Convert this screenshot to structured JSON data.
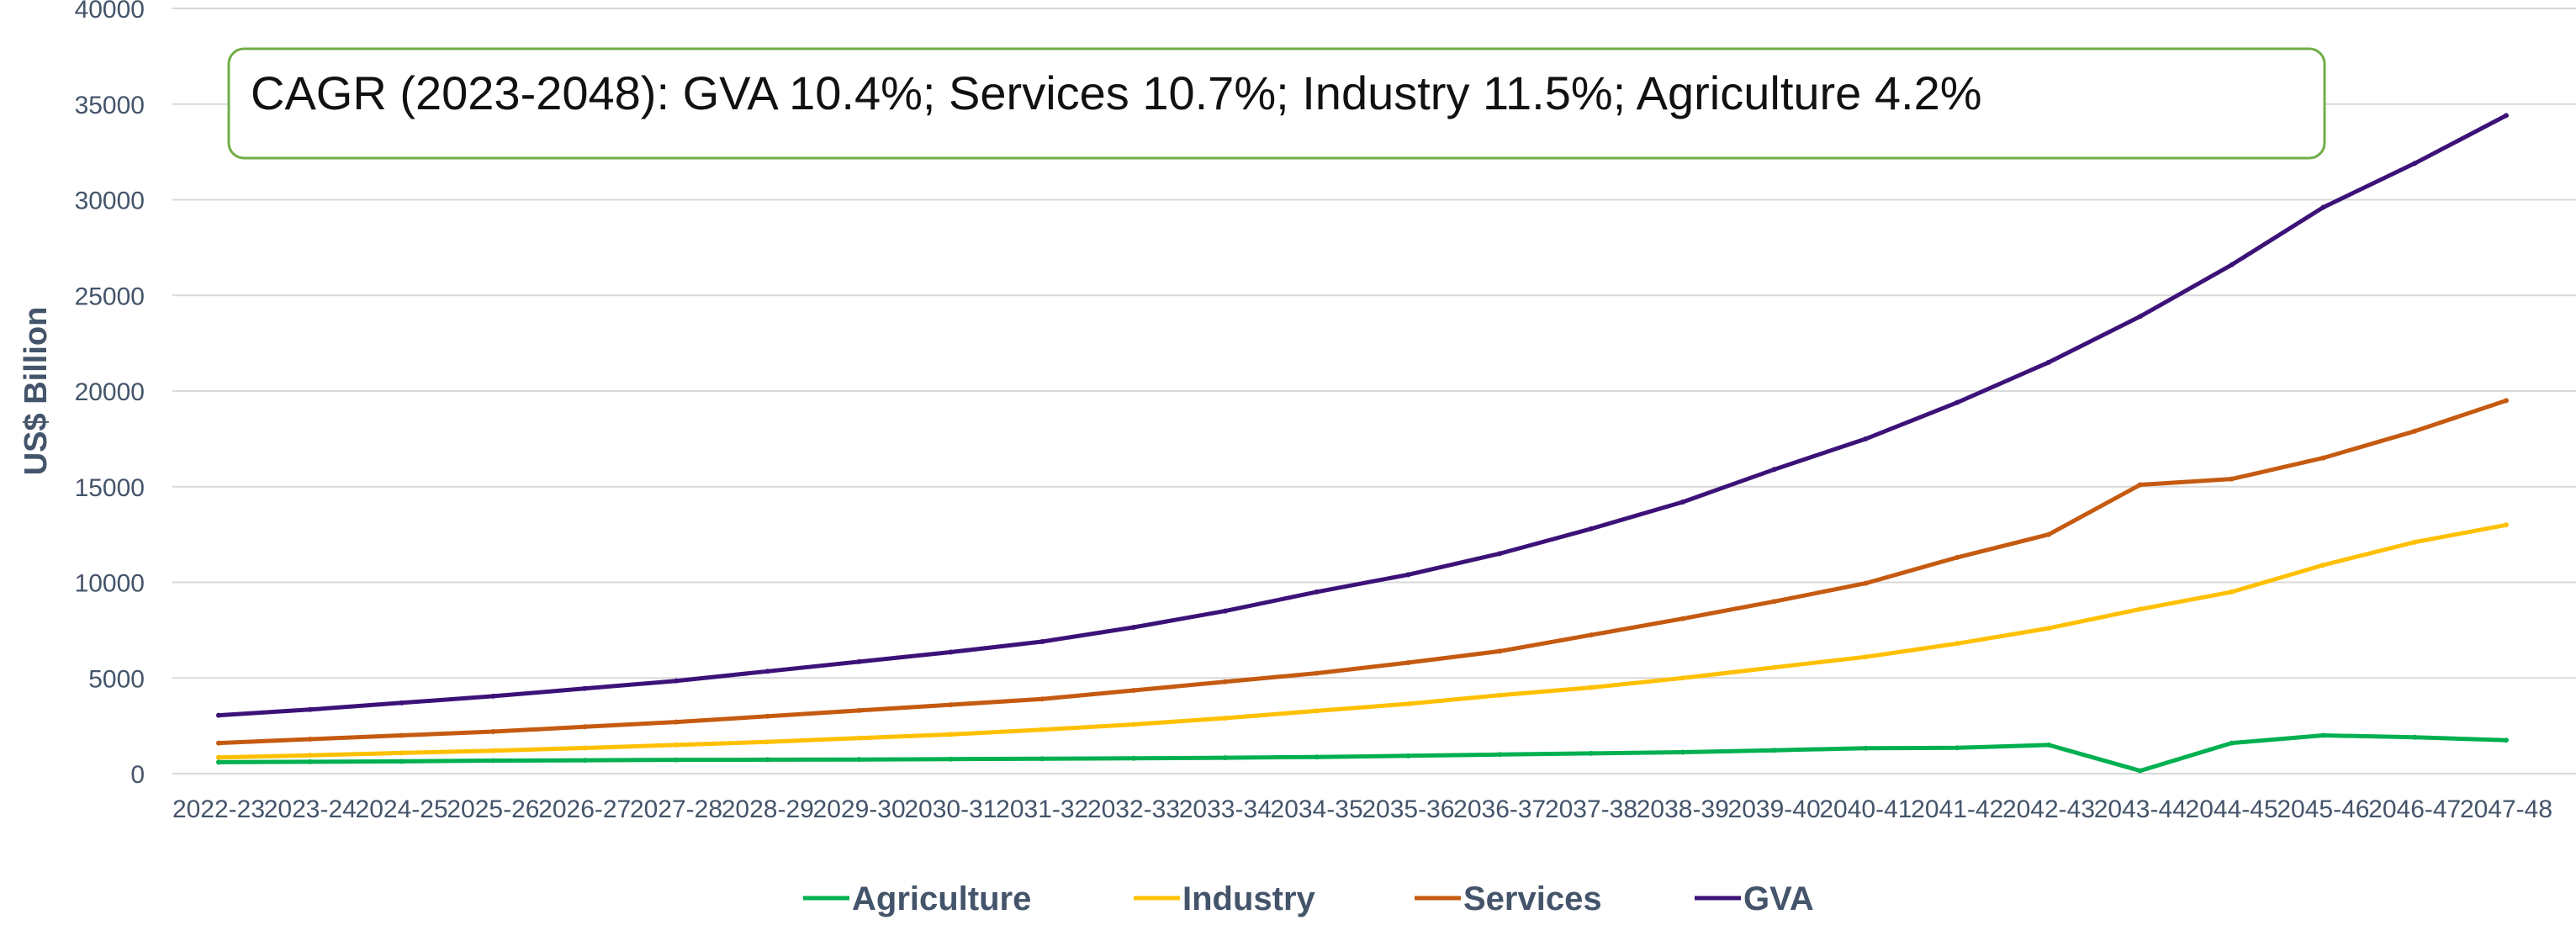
{
  "chart_data": {
    "type": "line",
    "ylabel": "US$ Billion",
    "ylim": [
      0,
      40000
    ],
    "yticks": [
      0,
      5000,
      10000,
      15000,
      20000,
      25000,
      30000,
      35000,
      40000
    ],
    "grid": true,
    "legend_position": "bottom",
    "annotation": "CAGR (2023-2048): GVA 10.4%; Services 10.7%; Industry 11.5%; Agriculture 4.2%",
    "categories": [
      "2022-23",
      "2023-24",
      "2024-25",
      "2025-26",
      "2026-27",
      "2027-28",
      "2028-29",
      "2029-30",
      "2030-31",
      "2031-32",
      "2032-33",
      "2033-34",
      "2034-35",
      "2035-36",
      "2036-37",
      "2037-38",
      "2038-39",
      "2039-40",
      "2040-41",
      "2041-42",
      "2042-43",
      "2043-44",
      "2044-45",
      "2045-46",
      "2046-47",
      "2047-48"
    ],
    "series": [
      {
        "name": "Agriculture",
        "color": "#00b050",
        "values": [
          600,
          620,
          640,
          680,
          700,
          720,
          730,
          740,
          760,
          780,
          800,
          830,
          870,
          930,
          1000,
          1060,
          1120,
          1220,
          1330,
          1350,
          1500,
          150,
          1600,
          2000,
          1900,
          1750
        ]
      },
      {
        "name": "Industry",
        "color": "#ffc000",
        "values": [
          850,
          960,
          1080,
          1200,
          1340,
          1500,
          1660,
          1860,
          2050,
          2300,
          2570,
          2900,
          3280,
          3650,
          4100,
          4500,
          5000,
          5550,
          6100,
          6800,
          7600,
          8600,
          9500,
          10900,
          12100,
          13000
        ]
      },
      {
        "name": "Services",
        "color": "#c55a11",
        "values": [
          1600,
          1800,
          2000,
          2200,
          2450,
          2700,
          3000,
          3300,
          3600,
          3900,
          4350,
          4800,
          5250,
          5800,
          6400,
          7250,
          8100,
          9000,
          9950,
          11300,
          12500,
          15100,
          15400,
          16500,
          17900,
          19500
        ]
      },
      {
        "name": "GVA",
        "color": "#3c1278",
        "values": [
          3050,
          3350,
          3700,
          4050,
          4450,
          4850,
          5350,
          5850,
          6350,
          6900,
          7650,
          8500,
          9500,
          10400,
          11500,
          12800,
          14200,
          15900,
          17500,
          19400,
          21500,
          23900,
          26600,
          29600,
          31900,
          34400
        ]
      }
    ]
  }
}
